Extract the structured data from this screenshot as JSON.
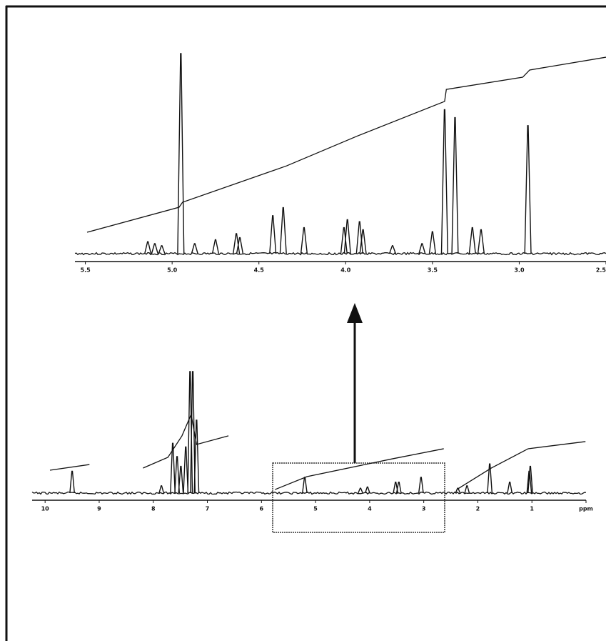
{
  "chart_data": [
    {
      "type": "spectrum",
      "xlim": [
        5.56,
        2.5
      ],
      "ylim": [
        0,
        100
      ],
      "xticks": [
        5.5,
        {
          "value": 5,
          "label": "5.0"
        },
        4.5,
        {
          "value": 4,
          "label": "4.0"
        },
        3.5,
        {
          "value": 3,
          "label": "3.0"
        },
        2.5
      ],
      "x": [
        4.95,
        3.43,
        3.37,
        2.95,
        4.36,
        4.42,
        4.24,
        4.01,
        3.99,
        3.92,
        3.9,
        3.5,
        3.27,
        3.22,
        3.56,
        5.14,
        5.1,
        4.75,
        4.63,
        4.61,
        4.87,
        3.73,
        5.06
      ],
      "values": [
        100,
        72,
        68,
        64,
        23,
        19,
        13,
        13,
        17,
        16,
        12,
        11,
        13,
        12,
        5,
        6,
        5,
        7,
        10,
        8,
        5,
        4,
        4
      ],
      "integral": {
        "x": [
          5.49,
          4.96,
          4.94,
          4.34,
          3.93,
          3.43,
          3.42,
          2.98,
          2.94,
          2.5
        ],
        "values": [
          10.7,
          23.2,
          25.7,
          43.9,
          58.9,
          76.1,
          82.1,
          88.2,
          91.8,
          98.2
        ]
      }
    },
    {
      "type": "spectrum",
      "xlim": [
        10.24,
        0
      ],
      "ylim": [
        0,
        100
      ],
      "xticks": [
        10,
        9,
        8,
        7,
        6,
        5,
        4,
        3,
        2,
        1,
        {
          "value": 0,
          "label": "ppm"
        }
      ],
      "x": [
        9.5,
        7.64,
        7.56,
        7.49,
        7.4,
        7.32,
        7.27,
        7.2,
        7.85,
        5.2,
        3.52,
        3.46,
        3.05,
        4.04,
        4.17,
        1.78,
        1.41,
        1.03,
        1.05,
        2.2,
        2.37
      ],
      "values": [
        18,
        41,
        30,
        22,
        38,
        100,
        100,
        60,
        6,
        13,
        9,
        9,
        13,
        5,
        4,
        24,
        9,
        22,
        18,
        6,
        4
      ],
      "integral": {
        "x": [
          9.91,
          9.18,
          null,
          8.19,
          7.73,
          7.47,
          7.3,
          7.2,
          6.61,
          null,
          5.75,
          5.16,
          3.58,
          2.63,
          null,
          2.39,
          1.75,
          1.07,
          0.01
        ],
        "values": [
          18.8,
          23.5,
          null,
          20.6,
          29.4,
          47.1,
          64.7,
          40,
          47.1,
          null,
          2.9,
          13.5,
          28.2,
          36.5,
          null,
          2.9,
          20.6,
          36.5,
          42.4
        ]
      }
    }
  ]
}
